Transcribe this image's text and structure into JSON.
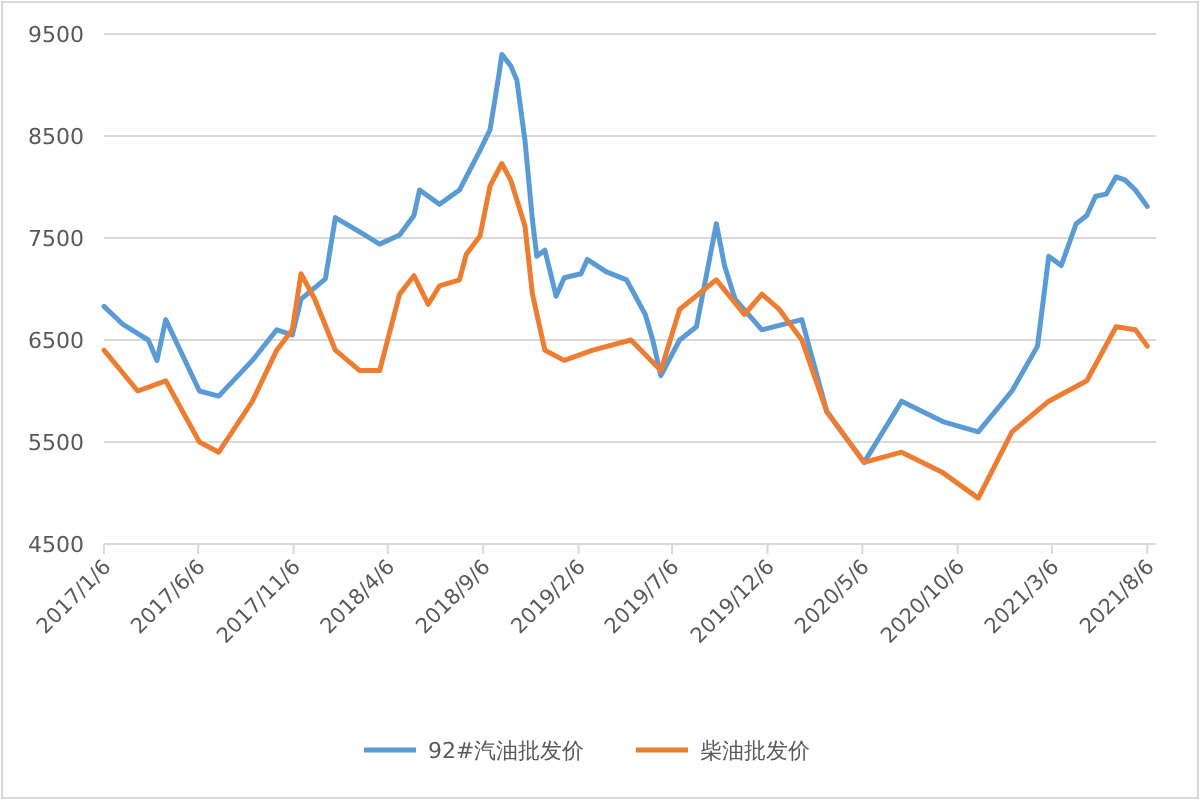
{
  "chart_data": {
    "type": "line",
    "ylim": [
      4500,
      9500
    ],
    "yticks": [
      4500,
      5500,
      6500,
      7500,
      8500,
      9500
    ],
    "grid": "y",
    "legend": "bottom",
    "marker": "none",
    "line_style": "solid",
    "xlim": [
      "2017-01-06",
      "2021-08-20"
    ],
    "xticks": [
      {
        "value": "2017-01-06",
        "label": "2017/1/6"
      },
      {
        "value": "2017-06-06",
        "label": "2017/6/6"
      },
      {
        "value": "2017-11-06",
        "label": "2017/11/6"
      },
      {
        "value": "2018-04-06",
        "label": "2018/4/6"
      },
      {
        "value": "2018-09-06",
        "label": "2018/9/6"
      },
      {
        "value": "2019-02-06",
        "label": "2019/2/6"
      },
      {
        "value": "2019-07-06",
        "label": "2019/7/6"
      },
      {
        "value": "2019-12-06",
        "label": "2019/12/6"
      },
      {
        "value": "2020-05-06",
        "label": "2020/5/6"
      },
      {
        "value": "2020-10-06",
        "label": "2020/10/6"
      },
      {
        "value": "2021-03-06",
        "label": "2021/3/6"
      },
      {
        "value": "2021-08-06",
        "label": "2021/8/6"
      }
    ],
    "series": [
      {
        "name": "92#汽油批发价",
        "color": "#5b9bd5",
        "x": [
          "2017-01-06",
          "2017-02-06",
          "2017-03-18",
          "2017-04-01",
          "2017-04-15",
          "2017-06-08",
          "2017-07-09",
          "2017-09-01",
          "2017-10-10",
          "2017-11-04",
          "2017-11-18",
          "2017-12-27",
          "2018-01-12",
          "2018-02-20",
          "2018-03-24",
          "2018-04-25",
          "2018-05-18",
          "2018-05-27",
          "2018-06-28",
          "2018-07-30",
          "2018-09-01",
          "2018-09-17",
          "2018-10-01",
          "2018-10-06",
          "2018-10-20",
          "2018-10-30",
          "2018-11-12",
          "2018-11-24",
          "2018-12-01",
          "2018-12-14",
          "2019-01-01",
          "2019-01-14",
          "2019-02-10",
          "2019-02-20",
          "2019-03-22",
          "2019-04-24",
          "2019-05-24",
          "2019-06-05",
          "2019-06-18",
          "2019-07-18",
          "2019-08-14",
          "2019-09-15",
          "2019-09-28",
          "2019-10-15",
          "2019-11-27",
          "2020-01-30",
          "2020-03-10",
          "2020-05-09",
          "2020-07-08",
          "2020-09-12",
          "2020-11-08",
          "2021-01-01",
          "2021-02-11",
          "2021-03-01",
          "2021-03-21",
          "2021-04-14",
          "2021-05-01",
          "2021-05-15",
          "2021-06-01",
          "2021-06-17",
          "2021-07-01",
          "2021-07-18",
          "2021-08-06"
        ],
        "values": [
          6830,
          6650,
          6500,
          6300,
          6700,
          6000,
          5950,
          6300,
          6600,
          6550,
          6900,
          7100,
          7700,
          7560,
          7440,
          7530,
          7720,
          7970,
          7830,
          7970,
          8360,
          8560,
          9090,
          9300,
          9190,
          9050,
          8460,
          7680,
          7320,
          7380,
          6930,
          7110,
          7150,
          7290,
          7170,
          7090,
          6750,
          6500,
          6150,
          6500,
          6630,
          7640,
          7230,
          6900,
          6600,
          6700,
          5800,
          5300,
          5900,
          5700,
          5600,
          6000,
          6440,
          7320,
          7230,
          7640,
          7720,
          7910,
          7930,
          8100,
          8070,
          7970,
          7810
        ]
      },
      {
        "name": "柴油批发价",
        "color": "#ed7d31",
        "x": [
          "2017-01-06",
          "2017-03-01",
          "2017-04-15",
          "2017-06-08",
          "2017-07-09",
          "2017-09-01",
          "2017-10-10",
          "2017-11-04",
          "2017-11-18",
          "2017-12-10",
          "2018-01-12",
          "2018-02-20",
          "2018-03-24",
          "2018-04-25",
          "2018-05-18",
          "2018-06-10",
          "2018-06-28",
          "2018-07-30",
          "2018-08-10",
          "2018-09-01",
          "2018-09-17",
          "2018-10-06",
          "2018-10-20",
          "2018-11-12",
          "2018-11-24",
          "2018-12-14",
          "2019-01-14",
          "2019-03-01",
          "2019-05-01",
          "2019-06-18",
          "2019-07-18",
          "2019-09-15",
          "2019-10-30",
          "2019-11-27",
          "2019-12-25",
          "2020-01-30",
          "2020-03-10",
          "2020-05-09",
          "2020-07-08",
          "2020-09-12",
          "2020-11-08",
          "2021-01-01",
          "2021-03-01",
          "2021-05-01",
          "2021-06-17",
          "2021-07-18",
          "2021-08-06"
        ],
        "values": [
          6400,
          6000,
          6100,
          5500,
          5400,
          5900,
          6400,
          6600,
          7150,
          6900,
          6400,
          6200,
          6200,
          6950,
          7130,
          6850,
          7030,
          7090,
          7340,
          7520,
          8010,
          8230,
          8070,
          7620,
          6950,
          6400,
          6300,
          6400,
          6500,
          6200,
          6800,
          7090,
          6750,
          6950,
          6800,
          6500,
          5800,
          5300,
          5400,
          5200,
          4950,
          5600,
          5900,
          6100,
          6630,
          6600,
          6440
        ]
      }
    ]
  }
}
